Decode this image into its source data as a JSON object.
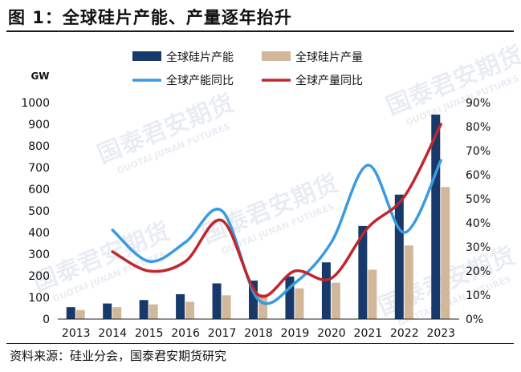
{
  "header": {
    "title": "图 1：全球硅片产能、产量逐年抬升"
  },
  "footer": {
    "source": "资料来源：硅业分会，国泰君安期货研究"
  },
  "watermark": {
    "text": "国泰君安期货",
    "subtext": "GUOTAI JUNAN FUTURES"
  },
  "chart_data": {
    "type": "bar",
    "unit_label": "GW",
    "categories": [
      "2013",
      "2014",
      "2015",
      "2016",
      "2017",
      "2018",
      "2019",
      "2020",
      "2021",
      "2022",
      "2023"
    ],
    "left_axis": {
      "ylim": [
        0,
        1000
      ],
      "ticks": [
        "0",
        "100",
        "200",
        "300",
        "400",
        "500",
        "600",
        "700",
        "800",
        "900",
        "1000"
      ]
    },
    "right_axis": {
      "ylim": [
        0,
        90
      ],
      "ticks": [
        "0%",
        "10%",
        "20%",
        "30%",
        "40%",
        "50%",
        "60%",
        "70%",
        "80%",
        "90%"
      ]
    },
    "bar_series": [
      {
        "name": "全球硅片产能",
        "color": "#173a6b",
        "values": [
          55,
          72,
          88,
          115,
          165,
          178,
          197,
          262,
          430,
          575,
          945
        ]
      },
      {
        "name": "全球硅片产量",
        "color": "#d2b79a",
        "values": [
          42,
          55,
          68,
          80,
          110,
          115,
          142,
          168,
          228,
          340,
          610
        ]
      }
    ],
    "line_series": [
      {
        "name": "全球产能同比",
        "color": "#3a9be0",
        "axis": "right",
        "x_start": 1,
        "values": [
          37,
          24,
          32,
          45,
          8,
          15,
          32,
          64,
          36,
          66
        ]
      },
      {
        "name": "全球产量同比",
        "color": "#c0272d",
        "axis": "right",
        "x_start": 1,
        "values": [
          28,
          20,
          24,
          41,
          10,
          20,
          17,
          38,
          51,
          81
        ]
      }
    ],
    "legend_position": "top"
  }
}
